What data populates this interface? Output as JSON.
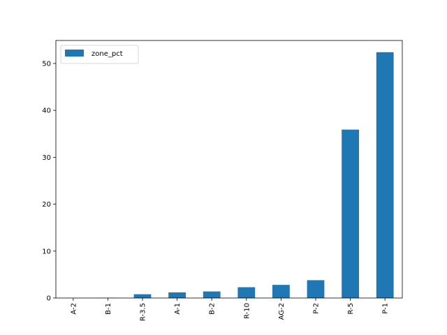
{
  "chart_data": {
    "type": "bar",
    "categories": [
      "A-2",
      "B-1",
      "R-3.5",
      "A-1",
      "B-2",
      "R-10",
      "AG-2",
      "P-2",
      "R-5",
      "P-1"
    ],
    "series": [
      {
        "name": "zone_pct",
        "values": [
          0.0,
          0.05,
          0.8,
          1.2,
          1.4,
          2.3,
          2.8,
          3.8,
          35.9,
          52.4
        ]
      }
    ],
    "ylim": [
      0,
      54.9
    ],
    "yticks": [
      0,
      10,
      20,
      30,
      40,
      50
    ],
    "ytick_labels": [
      "0",
      "10",
      "20",
      "30",
      "40",
      "50"
    ],
    "xtick_rotation": 90,
    "legend_position": "top-left",
    "grid": false,
    "colors": {
      "bar": "#1f77b4",
      "axis": "#000000",
      "background": "#ffffff"
    }
  }
}
